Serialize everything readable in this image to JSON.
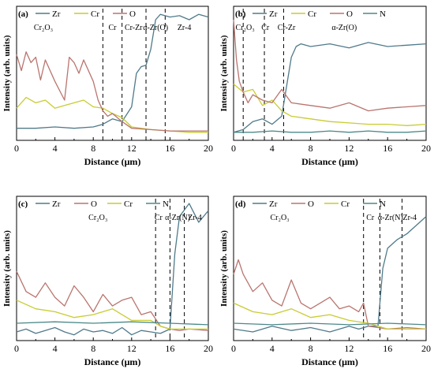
{
  "figure": {
    "shared_axis_range": {
      "xlim": [
        0,
        20
      ]
    }
  },
  "colors": {
    "Zr": "#4f7a8a",
    "Cr": "#c8cc32",
    "O": "#b9756f",
    "N": "#4b8888"
  },
  "chart_data": [
    {
      "type": "line",
      "panel": "(a)",
      "xlabel": "Distance (μm)",
      "ylabel": "Intensity (arb. units)",
      "xlim": [
        0,
        20
      ],
      "xticks": [
        "0",
        "4",
        "8",
        "12",
        "16",
        "20"
      ],
      "legend": [
        "Zr",
        "Cr",
        "O"
      ],
      "legend_position": "top",
      "grid": false,
      "y_units": "arbitrary (0 = axis bottom, 100 = axis top)",
      "region_lines": [
        9.0,
        11.0,
        13.5,
        15.5
      ],
      "region_labels": [
        {
          "text": "Cr₂O₃",
          "x": 2.8
        },
        {
          "text": "Cr",
          "x": 10.0
        },
        {
          "text": "Cr-Zr",
          "x": 12.2
        },
        {
          "text": "α-Zr(O)",
          "x": 14.5
        },
        {
          "text": "Zr-4",
          "x": 17.5
        }
      ],
      "series": [
        {
          "name": "Zr",
          "x": [
            0,
            2,
            4,
            6,
            8,
            9,
            10,
            11,
            12,
            12.5,
            13,
            13.5,
            14,
            14.5,
            15,
            16,
            17,
            18,
            19,
            20
          ],
          "y": [
            9,
            9,
            10,
            9,
            10,
            12,
            16,
            14,
            25,
            50,
            55,
            56,
            68,
            90,
            94,
            92,
            93,
            90,
            94,
            92
          ]
        },
        {
          "name": "Cr",
          "x": [
            0,
            1,
            2,
            3,
            4,
            5,
            6,
            7,
            8,
            9,
            10,
            11,
            12,
            13,
            14,
            16,
            18,
            20
          ],
          "y": [
            24,
            32,
            28,
            30,
            24,
            26,
            28,
            30,
            25,
            24,
            20,
            17,
            10,
            9,
            8,
            7,
            6,
            6
          ]
        },
        {
          "name": "O",
          "x": [
            0,
            0.5,
            1,
            1.5,
            2,
            2.5,
            3,
            4,
            5,
            5.5,
            6,
            6.5,
            7,
            8,
            8.5,
            9,
            9.5,
            10,
            11,
            12,
            14,
            16,
            18,
            20
          ],
          "y": [
            64,
            52,
            66,
            58,
            62,
            45,
            60,
            44,
            30,
            62,
            58,
            50,
            60,
            44,
            30,
            22,
            18,
            20,
            14,
            9,
            8,
            7,
            7,
            7
          ]
        }
      ]
    },
    {
      "type": "line",
      "panel": "(b)",
      "xlabel": "Distance (μm)",
      "ylabel": "Intensity (arb. units)",
      "xlim": [
        0,
        20
      ],
      "xticks": [
        "0",
        "4",
        "8",
        "12",
        "16",
        "20"
      ],
      "legend": [
        "Zr",
        "Cr",
        "O",
        "N"
      ],
      "legend_position": "top",
      "grid": false,
      "y_units": "arbitrary (0 = axis bottom, 100 = axis top)",
      "region_lines": [
        1.0,
        3.2,
        5.2
      ],
      "region_labels": [
        {
          "text": "Cr₂O₃",
          "x": 1.2
        },
        {
          "text": "Cr",
          "x": 3.3
        },
        {
          "text": "Cr-Zr",
          "x": 5.5
        },
        {
          "text": "α-Zr(O)",
          "x": 11.5
        }
      ],
      "series": [
        {
          "name": "Zr",
          "x": [
            0,
            1,
            2,
            3,
            4,
            5,
            5.5,
            6,
            6.5,
            7,
            8,
            10,
            12,
            14,
            16,
            18,
            20
          ],
          "y": [
            6,
            8,
            14,
            16,
            12,
            18,
            40,
            62,
            70,
            72,
            70,
            72,
            69,
            73,
            70,
            71,
            72
          ]
        },
        {
          "name": "Cr",
          "x": [
            0,
            1,
            2,
            3,
            4,
            5,
            6,
            8,
            10,
            12,
            14,
            16,
            18,
            20
          ],
          "y": [
            42,
            36,
            38,
            26,
            30,
            22,
            18,
            16,
            14,
            13,
            12,
            12,
            11,
            12
          ]
        },
        {
          "name": "O",
          "x": [
            0,
            0.3,
            0.6,
            1,
            1.5,
            2,
            3,
            4,
            5,
            6,
            8,
            10,
            12,
            14,
            16,
            18,
            20
          ],
          "y": [
            90,
            60,
            44,
            36,
            28,
            34,
            30,
            28,
            38,
            28,
            26,
            24,
            28,
            22,
            24,
            25,
            26
          ]
        },
        {
          "name": "N",
          "x": [
            0,
            2,
            4,
            6,
            8,
            10,
            12,
            14,
            16,
            18,
            20
          ],
          "y": [
            6,
            6,
            7,
            6,
            6,
            7,
            6,
            7,
            6,
            6,
            7
          ]
        }
      ]
    },
    {
      "type": "line",
      "panel": "(c)",
      "xlabel": "Distance (μm)",
      "ylabel": "Intensity (arb. units)",
      "xlim": [
        0,
        20
      ],
      "xticks": [
        "0",
        "4",
        "8",
        "12",
        "16",
        "20"
      ],
      "legend": [
        "Zr",
        "O",
        "Cr",
        "N"
      ],
      "legend_position": "top",
      "grid": false,
      "y_units": "arbitrary (0 = axis bottom, 100 = axis top)",
      "region_lines": [
        14.5,
        16.0,
        17.5
      ],
      "region_labels": [
        {
          "text": "Cr₂O₃",
          "x": 8.5
        },
        {
          "text": "Cr",
          "x": 14.8
        },
        {
          "text": "α-Zr(N)",
          "x": 16.8
        },
        {
          "text": "Zr-4",
          "x": 18.6
        }
      ],
      "series": [
        {
          "name": "Zr",
          "x": [
            0,
            1,
            2,
            3,
            4,
            5,
            6,
            7,
            8,
            9,
            10,
            11,
            12,
            13,
            14,
            15,
            16,
            16.5,
            17,
            18,
            19,
            20
          ],
          "y": [
            6,
            8,
            5,
            7,
            9,
            6,
            4,
            8,
            6,
            7,
            5,
            9,
            4,
            7,
            6,
            5,
            8,
            60,
            86,
            95,
            82,
            90
          ]
        },
        {
          "name": "O",
          "x": [
            0,
            1,
            2,
            3,
            4,
            5,
            6,
            7,
            8,
            9,
            10,
            11,
            12,
            13,
            14,
            15,
            16,
            17,
            18,
            20
          ],
          "y": [
            48,
            34,
            30,
            40,
            30,
            24,
            38,
            30,
            20,
            32,
            24,
            28,
            30,
            18,
            20,
            10,
            8,
            7,
            8,
            7
          ]
        },
        {
          "name": "Cr",
          "x": [
            0,
            2,
            4,
            6,
            8,
            10,
            12,
            14,
            15,
            16,
            18,
            20
          ],
          "y": [
            28,
            22,
            20,
            16,
            18,
            22,
            14,
            14,
            10,
            8,
            8,
            8
          ]
        },
        {
          "name": "N",
          "x": [
            0,
            4,
            8,
            12,
            16,
            20
          ],
          "y": [
            12,
            13,
            12,
            13,
            12,
            11
          ]
        }
      ]
    },
    {
      "type": "line",
      "panel": "(d)",
      "xlabel": "Distance (μm)",
      "ylabel": "Intensity (arb. units)",
      "xlim": [
        0,
        20
      ],
      "xticks": [
        "0",
        "4",
        "8",
        "12",
        "16",
        "20"
      ],
      "legend": [
        "Zr",
        "O",
        "Cr",
        "N"
      ],
      "legend_position": "top",
      "grid": false,
      "y_units": "arbitrary (0 = axis bottom, 100 = axis top)",
      "region_lines": [
        13.5,
        15.2,
        17.5
      ],
      "region_labels": [
        {
          "text": "Cr₂O₃",
          "x": 4.8
        },
        {
          "text": "Cr",
          "x": 14.2
        },
        {
          "text": "α-Zr(N)",
          "x": 16.3
        },
        {
          "text": "Zr-4",
          "x": 18.3
        }
      ],
      "series": [
        {
          "name": "Zr",
          "x": [
            0,
            2,
            4,
            6,
            8,
            10,
            12,
            13,
            14,
            15,
            15.5,
            16,
            17,
            18,
            19,
            20
          ],
          "y": [
            8,
            6,
            10,
            7,
            9,
            6,
            10,
            8,
            10,
            10,
            50,
            64,
            70,
            74,
            80,
            86
          ]
        },
        {
          "name": "O",
          "x": [
            0,
            0.5,
            1,
            2,
            3,
            4,
            5,
            6,
            7,
            8,
            9,
            10,
            11,
            12,
            13,
            13.5,
            14,
            15,
            16,
            18,
            20
          ],
          "y": [
            46,
            56,
            46,
            34,
            40,
            28,
            24,
            42,
            26,
            22,
            26,
            30,
            22,
            24,
            20,
            26,
            10,
            9,
            8,
            9,
            8
          ]
        },
        {
          "name": "Cr",
          "x": [
            0,
            2,
            4,
            6,
            8,
            10,
            12,
            14,
            16,
            18,
            20
          ],
          "y": [
            26,
            20,
            18,
            22,
            16,
            18,
            14,
            12,
            8,
            8,
            8
          ]
        },
        {
          "name": "N",
          "x": [
            0,
            4,
            8,
            12,
            16,
            20
          ],
          "y": [
            12,
            11,
            12,
            11,
            12,
            11
          ]
        }
      ]
    }
  ]
}
